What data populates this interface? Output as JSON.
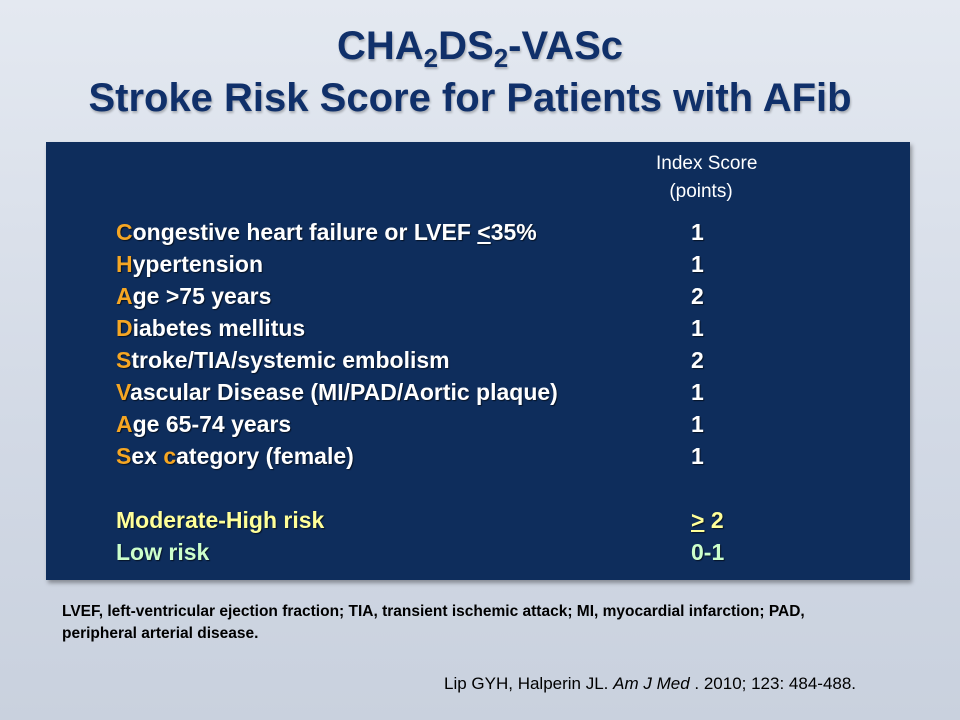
{
  "title": {
    "line1_pre": "CHA",
    "line1_sub1": "2",
    "line1_mid": "DS",
    "line1_sub2": "2",
    "line1_post": "-VASc",
    "line2": "Stroke Risk Score for Patients with AFib"
  },
  "table": {
    "header_line1": "Index Score",
    "header_line2": "(points)",
    "rows": [
      {
        "letter": "C",
        "rest_a": "ongestive heart failure or LVEF ",
        "underlined": "<",
        "rest_b": "35%",
        "points": "1"
      },
      {
        "letter": "H",
        "rest": "ypertension",
        "points": "1"
      },
      {
        "letter": "A",
        "rest": "ge >75 years",
        "points": "2"
      },
      {
        "letter": "D",
        "rest": "iabetes mellitus",
        "points": "1"
      },
      {
        "letter": "S",
        "rest": "troke/TIA/systemic embolism",
        "points": "2"
      },
      {
        "letter": "V",
        "rest": "ascular Disease (MI/PAD/Aortic plaque)",
        "points": "1"
      },
      {
        "letter": "A",
        "rest": "ge 65-74 years",
        "points": "1"
      },
      {
        "letter": "S",
        "rest_a": "ex ",
        "letter2": "c",
        "rest_b": "ategory (female)",
        "points": "1"
      }
    ],
    "risk": [
      {
        "label": "Moderate-High risk",
        "points_underlined": ">",
        "points_rest": " 2",
        "color": "#ffff99"
      },
      {
        "label": "Low risk",
        "points": "0-1",
        "color": "#ccffcc"
      }
    ]
  },
  "footnote": "LVEF, left-ventricular ejection fraction;  TIA, transient ischemic attack;  MI, myocardial infarction; PAD, peripheral arterial disease.",
  "citation": {
    "authors": "Lip GYH, Halperin JL. ",
    "journal": "Am J Med",
    "details": " .  2010; 123: 484-488."
  },
  "colors": {
    "title": "#10306a",
    "panel_bg": "#0e2d5c",
    "initial_letter": "#f5a623",
    "moderate_high": "#ffff99",
    "low": "#ccffcc"
  }
}
